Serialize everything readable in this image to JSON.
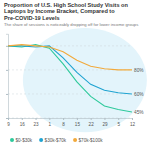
{
  "chart_data": {
    "type": "line",
    "title": "Proportion of U.S. High School Study Visits on Laptops by Income Bracket, Compared to Pre-COVID-19 Levels",
    "subtitle": "The share of sessions is noticeably dropping off for lower income groups",
    "categories": [
      "9",
      "16",
      "23",
      "1",
      "8",
      "15",
      "22",
      "29",
      "5",
      "12"
    ],
    "series": [
      {
        "name": "$0-$30k",
        "color": "#2ec99b",
        "values": [
          100,
          99,
          101,
          98,
          85,
          70,
          58,
          50,
          47,
          45
        ]
      },
      {
        "name": "$30k-$70k",
        "color": "#1fa3d1",
        "values": [
          100,
          100,
          99,
          100,
          90,
          78,
          68,
          63,
          61,
          60
        ]
      },
      {
        "name": "$70k-$100k",
        "color": "#f2a93b",
        "values": [
          100,
          101,
          100,
          99,
          95,
          88,
          83,
          81,
          80,
          80
        ]
      }
    ],
    "annotations": [
      {
        "text": "80%",
        "x": 9,
        "y": 80
      },
      {
        "text": "60%",
        "x": 9,
        "y": 60
      },
      {
        "text": "45%",
        "x": 9,
        "y": 45
      }
    ],
    "ylim": [
      40,
      110
    ],
    "yticks": [
      40,
      60,
      80,
      100
    ],
    "grid": true,
    "tick_labels": "x",
    "legend": "bottom"
  }
}
